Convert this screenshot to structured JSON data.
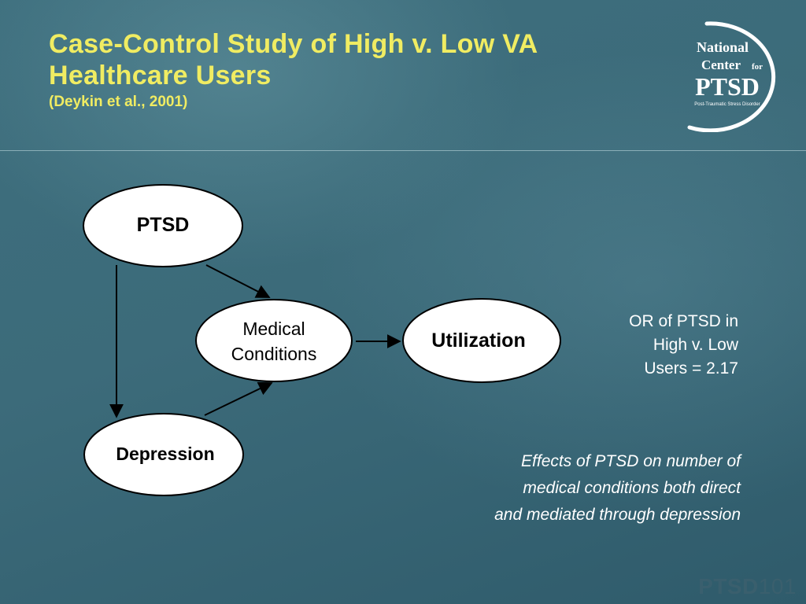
{
  "slide": {
    "title": "Case-Control Study of High v. Low VA Healthcare Users",
    "subtitle": "(Deykin et al., 2001)"
  },
  "logo": {
    "line1": "National",
    "line2_main": "Center",
    "line2_small": "for",
    "acronym": "PTSD",
    "tagline": "Post-Traumatic Stress Disorder"
  },
  "diagram": {
    "nodes": {
      "ptsd": "PTSD",
      "medical_line1": "Medical",
      "medical_line2": "Conditions",
      "utilization": "Utilization",
      "depression": "Depression"
    }
  },
  "notes": {
    "or_line1": "OR of PTSD in",
    "or_line2": "High v. Low",
    "or_line3": "Users = 2.17",
    "effects_line1": "Effects of PTSD on number of",
    "effects_line2": "medical conditions both direct",
    "effects_line3": "and mediated through depression"
  },
  "footer": {
    "brand": "PTSD",
    "number": "101"
  }
}
